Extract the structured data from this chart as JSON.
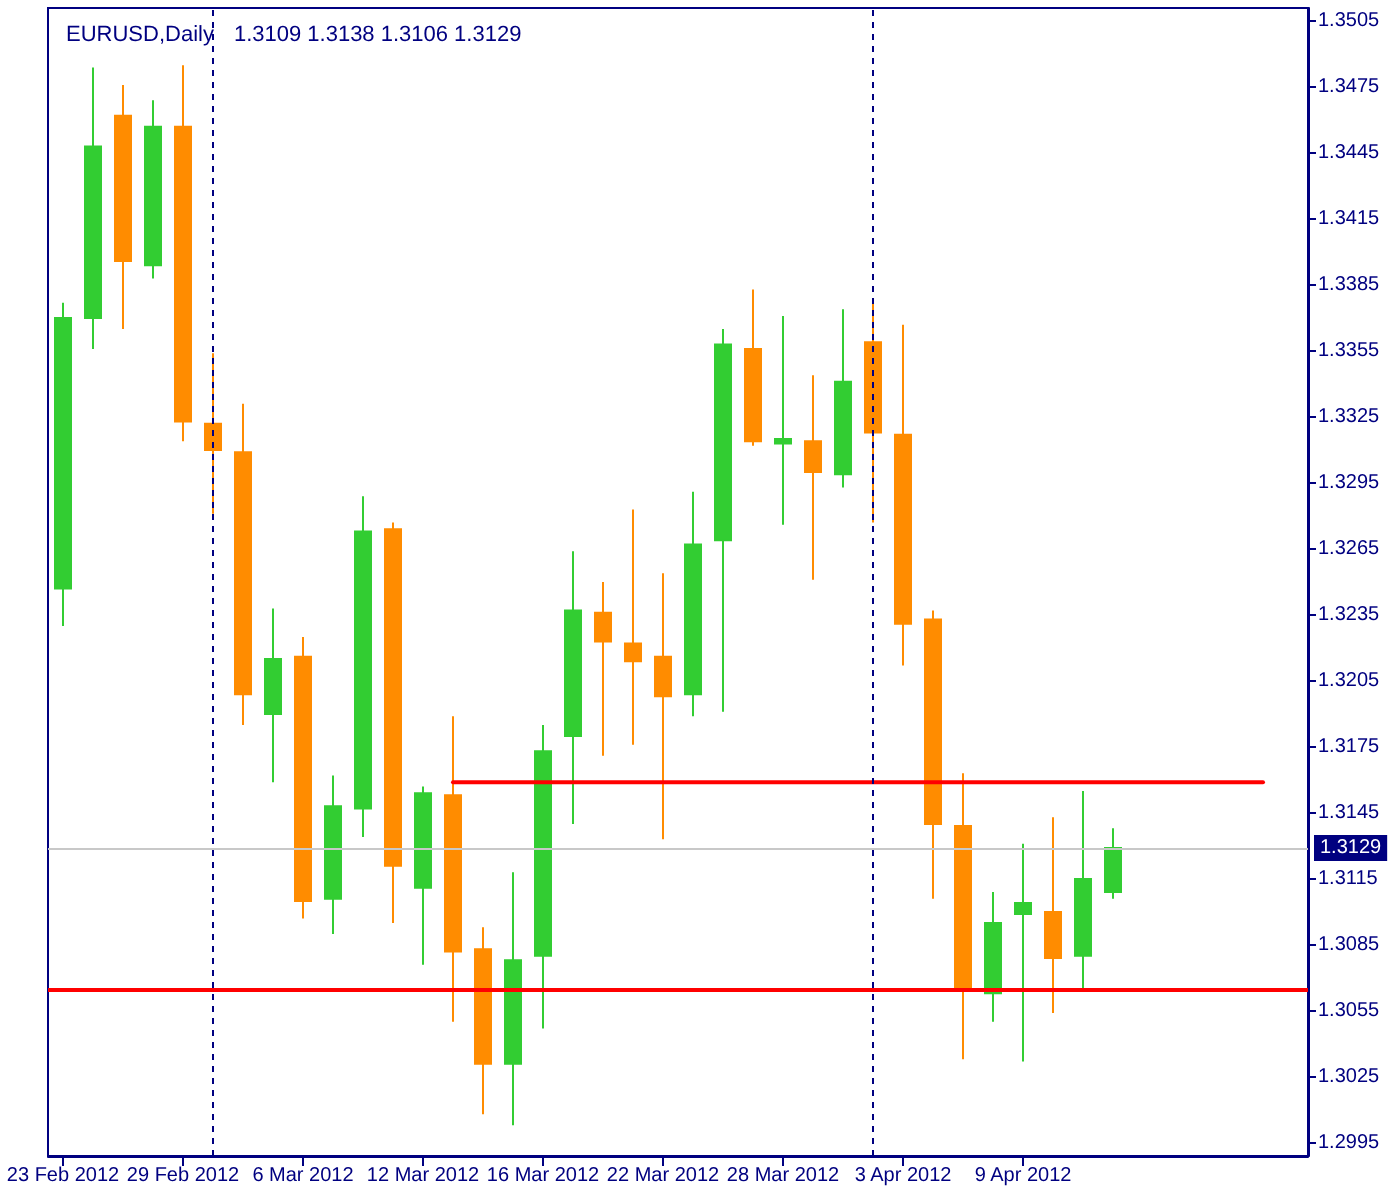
{
  "chart_data": {
    "type": "candlestick",
    "title": "EURUSD,Daily",
    "subtitle": "1.3109 1.3138 1.3106 1.3129",
    "categories": [
      "23 Feb 2012",
      null,
      null,
      null,
      "29 Feb 2012",
      null,
      null,
      null,
      "6 Mar 2012",
      null,
      null,
      null,
      "12 Mar 2012",
      null,
      null,
      null,
      "16 Mar 2012",
      null,
      null,
      null,
      "22 Mar 2012",
      null,
      null,
      null,
      "28 Mar 2012",
      null,
      null,
      null,
      "3 Apr 2012",
      null,
      null,
      null,
      "9 Apr 2012",
      null,
      null,
      null,
      null,
      null,
      null,
      null,
      null,
      null
    ],
    "series": [
      {
        "type": "candlestick",
        "ohlc": [
          [
            1.3247,
            1.3377,
            1.323,
            1.337
          ],
          [
            1.337,
            1.3484,
            1.3356,
            1.3448
          ],
          [
            1.3462,
            1.3476,
            1.3365,
            1.3396
          ],
          [
            1.3394,
            1.3469,
            1.3388,
            1.3457
          ],
          [
            1.3457,
            1.3485,
            1.3314,
            1.3323
          ],
          [
            1.3322,
            1.3354,
            1.3281,
            1.331
          ],
          [
            1.3309,
            1.3331,
            1.3185,
            1.3199
          ],
          [
            1.319,
            1.3238,
            1.3159,
            1.3215
          ],
          [
            1.3216,
            1.3225,
            1.3097,
            1.3105
          ],
          [
            1.3106,
            1.3162,
            1.309,
            1.3148
          ],
          [
            1.3147,
            1.3289,
            1.3134,
            1.3273
          ],
          [
            1.3274,
            1.3277,
            1.3095,
            1.3121
          ],
          [
            1.3111,
            1.3157,
            1.3076,
            1.3154
          ],
          [
            1.3153,
            1.3189,
            1.305,
            1.3082
          ],
          [
            1.3083,
            1.3093,
            1.3008,
            1.3031
          ],
          [
            1.3031,
            1.3118,
            1.3003,
            1.3078
          ],
          [
            1.308,
            1.3185,
            1.3047,
            1.3173
          ],
          [
            1.318,
            1.3264,
            1.314,
            1.3237
          ],
          [
            1.3236,
            1.325,
            1.3171,
            1.3223
          ],
          [
            1.3222,
            1.3283,
            1.3176,
            1.3214
          ],
          [
            1.3216,
            1.3254,
            1.3133,
            1.3198
          ],
          [
            1.3199,
            1.3291,
            1.3189,
            1.3267
          ],
          [
            1.3269,
            1.3365,
            1.3191,
            1.3358
          ],
          [
            1.3356,
            1.3383,
            1.3312,
            1.3314
          ],
          [
            1.3313,
            1.3371,
            1.3276,
            1.3315
          ],
          [
            1.3314,
            1.3344,
            1.3251,
            1.33
          ],
          [
            1.3299,
            1.3374,
            1.3293,
            1.3341
          ],
          [
            1.3359,
            1.3379,
            1.3277,
            1.3318
          ],
          [
            1.3317,
            1.3367,
            1.3212,
            1.3231
          ],
          [
            1.3233,
            1.3237,
            1.3106,
            1.314
          ],
          [
            1.3139,
            1.3163,
            1.3033,
            1.3065
          ],
          [
            1.3063,
            1.3109,
            1.305,
            1.3095
          ],
          [
            1.3099,
            1.3131,
            1.3032,
            1.3104
          ],
          [
            1.31,
            1.3143,
            1.3054,
            1.3079
          ],
          [
            1.308,
            1.3155,
            1.3065,
            1.3115
          ],
          [
            1.3109,
            1.3138,
            1.3106,
            1.3129
          ],
          null,
          null,
          null,
          null,
          null,
          null
        ],
        "colors": [
          "#32cd32",
          "#32cd32",
          "#ff8c00",
          "#32cd32",
          "#ff8c00",
          "#ff8c00",
          "#ff8c00",
          "#32cd32",
          "#ff8c00",
          "#32cd32",
          "#32cd32",
          "#ff8c00",
          "#32cd32",
          "#ff8c00",
          "#ff8c00",
          "#32cd32",
          "#32cd32",
          "#32cd32",
          "#ff8c00",
          "#ff8c00",
          "#ff8c00",
          "#32cd32",
          "#32cd32",
          "#ff8c00",
          "#32cd32",
          "#ff8c00",
          "#32cd32",
          "#ff8c00",
          "#ff8c00",
          "#ff8c00",
          "#ff8c00",
          "#32cd32",
          "#32cd32",
          "#ff8c00",
          "#32cd32",
          "#32cd32",
          null,
          null,
          null,
          null,
          null,
          null
        ]
      },
      {
        "type": "line",
        "color": "#ff0000",
        "values": [
          null,
          null,
          null,
          null,
          null,
          null,
          null,
          null,
          null,
          null,
          null,
          null,
          null,
          1.3159,
          1.3159,
          1.3159,
          1.3159,
          1.3159,
          1.3159,
          1.3159,
          1.3159,
          1.3159,
          1.3159,
          1.3159,
          1.3159,
          1.3159,
          1.3159,
          1.3159,
          1.3159,
          1.3159,
          1.3159,
          1.3159,
          1.3159,
          1.3159,
          1.3159,
          1.3159,
          1.3159,
          1.3159,
          1.3159,
          1.3159,
          1.3159,
          null
        ]
      }
    ],
    "marker": "none",
    "ylim": [
      1.2989,
      1.3511
    ],
    "yticks": [
      1.2995,
      1.3025,
      1.3055,
      1.3085,
      1.3115,
      1.3145,
      1.3175,
      1.3205,
      1.3235,
      1.3265,
      1.3295,
      1.3325,
      1.3355,
      1.3385,
      1.3415,
      1.3445,
      1.3475,
      1.3505
    ],
    "ref_lines": [
      {
        "axis": "y",
        "value": 1.3065,
        "color": "#ff0000"
      },
      {
        "axis": "y",
        "value": 1.3129,
        "color": "#c8c8c8",
        "label": "1.3129"
      }
    ]
  }
}
